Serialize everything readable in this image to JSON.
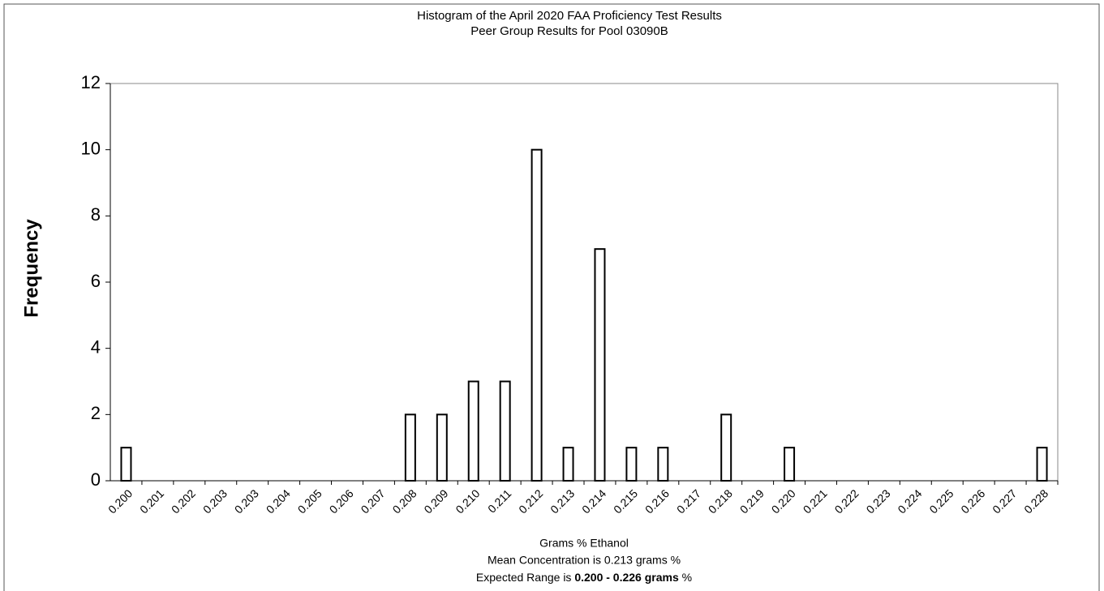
{
  "chart_data": {
    "type": "bar",
    "title": [
      "Histogram of the April 2020 FAA Proficiency Test  Results",
      "Peer Group Results for Pool  03090B"
    ],
    "y_label": "Frequency",
    "x_label": "Grams % Ethanol",
    "mean_note": "Mean Concentration is 0.213 grams %",
    "range_note": [
      "Expected Range is",
      "0.200 - 0.226 grams",
      "%"
    ],
    "categories": [
      "0.200",
      "0.201",
      "0.202",
      "0.203",
      "0.203",
      "0.204",
      "0.205",
      "0.206",
      "0.207",
      "0.208",
      "0.209",
      "0.210",
      "0.211",
      "0.212",
      "0.213",
      "0.214",
      "0.215",
      "0.216",
      "0.217",
      "0.218",
      "0.219",
      "0.220",
      "0.221",
      "0.222",
      "0.223",
      "0.224",
      "0.225",
      "0.226",
      "0.227",
      "0.228"
    ],
    "values": [
      1,
      0,
      0,
      0,
      0,
      0,
      0,
      0,
      0,
      2,
      2,
      3,
      3,
      10,
      1,
      7,
      1,
      1,
      0,
      2,
      0,
      1,
      0,
      0,
      0,
      0,
      0,
      0,
      0,
      1
    ],
    "color": "#ffffff",
    "ylim": [
      0,
      12
    ],
    "yticks": [
      0,
      2,
      4,
      6,
      8,
      10,
      12
    ],
    "grid": false
  }
}
